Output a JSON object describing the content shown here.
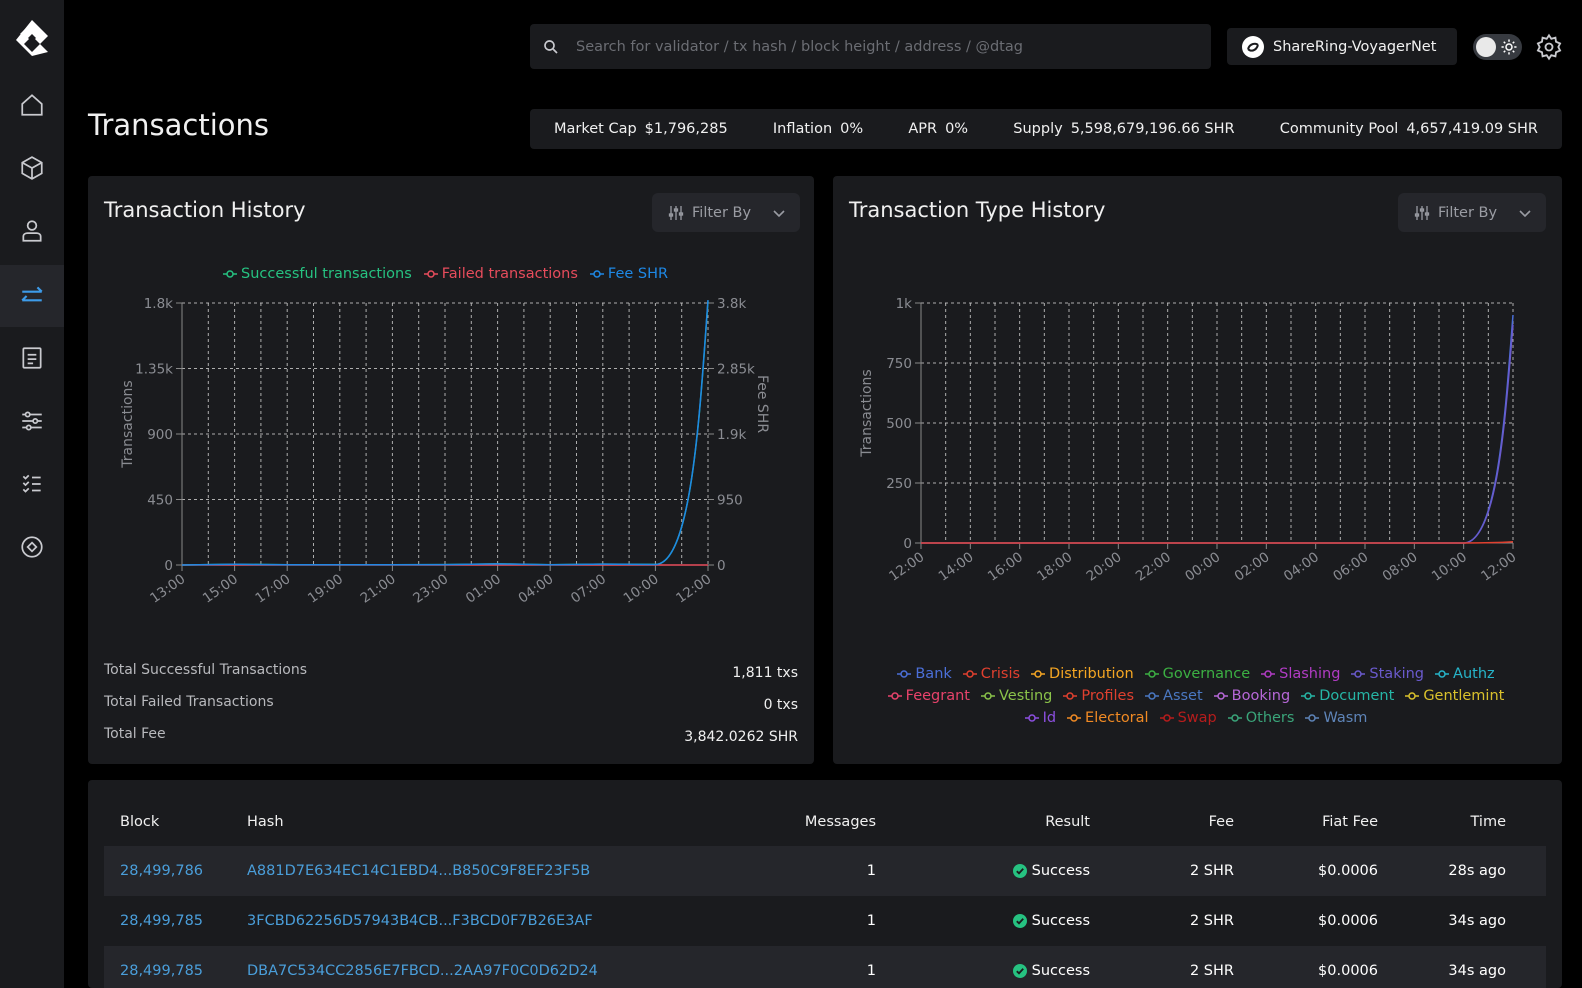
{
  "sidebar": {
    "items": [
      {
        "icon": "home-icon"
      },
      {
        "icon": "cube-icon"
      },
      {
        "icon": "user-icon"
      },
      {
        "icon": "transfer-icon",
        "active": true
      },
      {
        "icon": "document-icon"
      },
      {
        "icon": "sliders-icon"
      },
      {
        "icon": "list-icon"
      },
      {
        "icon": "target-icon"
      }
    ]
  },
  "header": {
    "search_placeholder": "Search for validator / tx hash / block height / address / @dtag",
    "network": "ShareRing-VoyagerNet"
  },
  "page": {
    "title": "Transactions"
  },
  "stats": [
    {
      "label": "Market Cap",
      "value": "$1,796,285"
    },
    {
      "label": "Inflation",
      "value": "0%"
    },
    {
      "label": "APR",
      "value": "0%"
    },
    {
      "label": "Supply",
      "value": "5,598,679,196.66 SHR"
    },
    {
      "label": "Community Pool",
      "value": "4,657,419.09 SHR"
    }
  ],
  "history_card": {
    "title": "Transaction History",
    "filter_label": "Filter By",
    "legend": [
      "Successful transactions",
      "Failed transactions",
      "Fee SHR"
    ],
    "summary": [
      {
        "label": "Total Successful Transactions",
        "value": "1,811 txs"
      },
      {
        "label": "Total Failed Transactions",
        "value": "0 txs"
      },
      {
        "label": "Total Fee",
        "value": "3,842.0262 SHR"
      }
    ]
  },
  "type_card": {
    "title": "Transaction Type History",
    "filter_label": "Filter By",
    "legend": [
      {
        "name": "Bank",
        "color": "#4b6fd8"
      },
      {
        "name": "Crisis",
        "color": "#e0402f"
      },
      {
        "name": "Distribution",
        "color": "#f5a623"
      },
      {
        "name": "Governance",
        "color": "#3cb043"
      },
      {
        "name": "Slashing",
        "color": "#b13cc4"
      },
      {
        "name": "Staking",
        "color": "#6a5acd"
      },
      {
        "name": "Authz",
        "color": "#26b4c9"
      },
      {
        "name": "Feegrant",
        "color": "#e8436b"
      },
      {
        "name": "Vesting",
        "color": "#8bc34a"
      },
      {
        "name": "Profiles",
        "color": "#e0402f"
      },
      {
        "name": "Asset",
        "color": "#4a78c2"
      },
      {
        "name": "Booking",
        "color": "#b768d8"
      },
      {
        "name": "Document",
        "color": "#26b6a6"
      },
      {
        "name": "Gentlemint",
        "color": "#d9c12c"
      },
      {
        "name": "Id",
        "color": "#8c4fe0"
      },
      {
        "name": "Electoral",
        "color": "#f08a24"
      },
      {
        "name": "Swap",
        "color": "#b71c1c"
      },
      {
        "name": "Others",
        "color": "#3aa57a"
      },
      {
        "name": "Wasm",
        "color": "#5e84b8"
      }
    ]
  },
  "chart_data": [
    {
      "type": "line",
      "title": "Transaction History",
      "x": [
        "13:00",
        "15:00",
        "17:00",
        "19:00",
        "21:00",
        "23:00",
        "01:00",
        "04:00",
        "07:00",
        "10:00",
        "12:00"
      ],
      "ylabel": "Transactions",
      "y2label": "Fee SHR",
      "yticks": [
        "0",
        "450",
        "900",
        "1.35k",
        "1.8k"
      ],
      "y2ticks": [
        "0",
        "950",
        "1.9k",
        "2.85k",
        "3.8k"
      ],
      "ylim": [
        0,
        1800
      ],
      "y2lim": [
        0,
        3800
      ],
      "series": [
        {
          "name": "Successful transactions",
          "color": "#26c281",
          "values": [
            0,
            5,
            2,
            2,
            2,
            3,
            8,
            2,
            6,
            4,
            1811
          ]
        },
        {
          "name": "Failed transactions",
          "color": "#e74c5c",
          "values": [
            0,
            0,
            0,
            0,
            0,
            0,
            0,
            0,
            0,
            0,
            0
          ]
        },
        {
          "name": "Fee SHR",
          "color": "#1e88e5",
          "values": [
            0,
            10,
            4,
            4,
            4,
            6,
            16,
            4,
            12,
            8,
            3842
          ]
        }
      ],
      "grid": true,
      "legend": "top"
    },
    {
      "type": "line",
      "title": "Transaction Type History",
      "x": [
        "12:00",
        "14:00",
        "16:00",
        "18:00",
        "20:00",
        "22:00",
        "00:00",
        "02:00",
        "04:00",
        "06:00",
        "08:00",
        "10:00",
        "12:00"
      ],
      "ylabel": "Transactions",
      "yticks": [
        "0",
        "250",
        "500",
        "750",
        "1k"
      ],
      "ylim": [
        0,
        1000
      ],
      "series": [
        {
          "name": "Bank",
          "color": "#4b6fd8",
          "values": [
            0,
            0,
            0,
            0,
            0,
            0,
            0,
            0,
            0,
            0,
            0,
            0,
            950
          ]
        },
        {
          "name": "Staking",
          "color": "#6a5acd",
          "values": [
            0,
            0,
            0,
            0,
            0,
            0,
            0,
            0,
            0,
            0,
            0,
            0,
            910
          ]
        },
        {
          "name": "Crisis",
          "color": "#e0402f",
          "values": [
            0,
            0,
            0,
            0,
            0,
            0,
            0,
            0,
            0,
            0,
            0,
            0,
            5
          ]
        }
      ],
      "grid": true,
      "legend": "bottom"
    }
  ],
  "table": {
    "headers": [
      "Block",
      "Hash",
      "Messages",
      "Result",
      "Fee",
      "Fiat Fee",
      "Time"
    ],
    "rows": [
      {
        "block": "28,499,786",
        "hash": "A881D7E634EC14C1EBD4...B850C9F8EF23F5B",
        "messages": "1",
        "result": "Success",
        "fee": "2 SHR",
        "fiat": "$0.0006",
        "time": "28s ago"
      },
      {
        "block": "28,499,785",
        "hash": "3FCBD62256D57943B4CB...F3BCD0F7B26E3AF",
        "messages": "1",
        "result": "Success",
        "fee": "2 SHR",
        "fiat": "$0.0006",
        "time": "34s ago"
      },
      {
        "block": "28,499,785",
        "hash": "DBA7C534CC2856E7FBCD...2AA97F0C0D62D24",
        "messages": "1",
        "result": "Success",
        "fee": "2 SHR",
        "fiat": "$0.0006",
        "time": "34s ago"
      }
    ]
  }
}
